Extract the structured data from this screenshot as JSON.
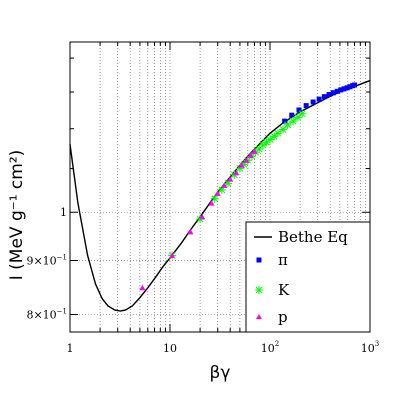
{
  "chart_data": {
    "type": "scatter",
    "xlabel": "βγ",
    "ylabel": "I (MeV g⁻¹ cm²)",
    "x_scale": "log",
    "y_scale": "log",
    "xlim": [
      1,
      1000
    ],
    "ylim": [
      0.77,
      1.45
    ],
    "grid": true,
    "legend_placement": "bottom-right",
    "x_ticks": [
      {
        "value": 1,
        "base": "1",
        "exp": ""
      },
      {
        "value": 10,
        "base": "10",
        "exp": ""
      },
      {
        "value": 100,
        "base": "10",
        "exp": "2"
      },
      {
        "value": 1000,
        "base": "10",
        "exp": "3"
      }
    ],
    "y_ticks": [
      {
        "value": 0.8,
        "base": "8×10",
        "exp": "−1"
      },
      {
        "value": 0.9,
        "base": "9×10",
        "exp": "−1"
      },
      {
        "value": 1.0,
        "base": "1",
        "exp": ""
      }
    ],
    "line_series": {
      "name": "Bethe Eq",
      "color": "#000000",
      "x": [
        1.0,
        1.2,
        1.5,
        1.8,
        2.1,
        2.4,
        2.8,
        3.2,
        3.6,
        4.2,
        5.0,
        6.0,
        7.0,
        8.5,
        10,
        13,
        16,
        20,
        25,
        30,
        40,
        50,
        60,
        80,
        100,
        130,
        160,
        200,
        300,
        400,
        500,
        700,
        1000
      ],
      "y": [
        1.16,
        1.02,
        0.91,
        0.855,
        0.828,
        0.815,
        0.808,
        0.806,
        0.808,
        0.815,
        0.83,
        0.848,
        0.865,
        0.888,
        0.905,
        0.935,
        0.962,
        0.99,
        1.02,
        1.045,
        1.08,
        1.108,
        1.13,
        1.163,
        1.188,
        1.212,
        1.228,
        1.245,
        1.27,
        1.288,
        1.3,
        1.316,
        1.333
      ]
    },
    "series": [
      {
        "name": "π",
        "marker": "square",
        "color": "#0000ff",
        "x": [
          140,
          165,
          195,
          230,
          270,
          310,
          350,
          390,
          430,
          470,
          510,
          550,
          590,
          630,
          670,
          700
        ],
        "y": [
          1.22,
          1.236,
          1.25,
          1.262,
          1.272,
          1.28,
          1.287,
          1.293,
          1.298,
          1.302,
          1.306,
          1.309,
          1.312,
          1.315,
          1.318,
          1.32
        ]
      },
      {
        "name": "K",
        "marker": "star",
        "color": "#00ff00",
        "x": [
          10.5,
          20,
          28,
          33,
          38,
          44,
          50,
          55,
          60,
          66,
          72,
          78,
          85,
          92,
          100,
          110,
          120,
          135,
          150,
          170,
          190,
          210
        ],
        "y": [
          0.91,
          0.985,
          1.03,
          1.05,
          1.065,
          1.085,
          1.1,
          1.11,
          1.12,
          1.13,
          1.14,
          1.148,
          1.158,
          1.165,
          1.172,
          1.18,
          1.188,
          1.198,
          1.21,
          1.22,
          1.23,
          1.24
        ]
      },
      {
        "name": "p",
        "marker": "triangle",
        "color": "#ff00ff",
        "x": [
          5.3,
          10.5,
          16,
          21,
          26,
          30,
          35,
          40,
          46,
          52,
          58,
          64,
          70
        ],
        "y": [
          0.848,
          0.91,
          0.958,
          0.99,
          1.02,
          1.042,
          1.06,
          1.075,
          1.09,
          1.108,
          1.12,
          1.132,
          1.142
        ]
      }
    ]
  }
}
